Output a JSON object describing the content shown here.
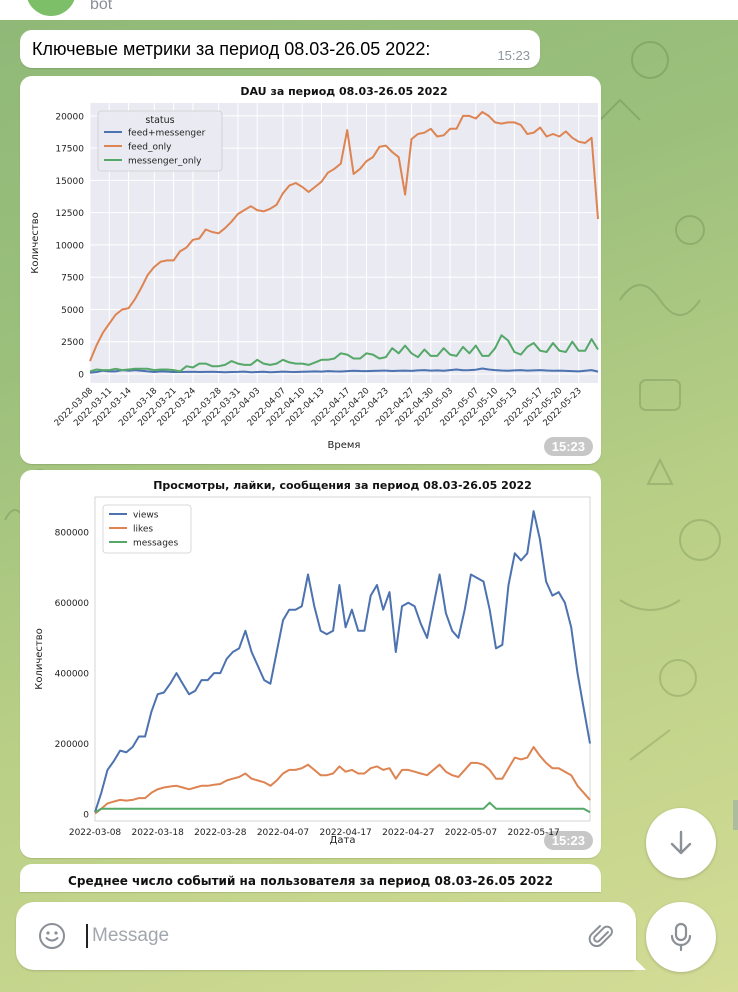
{
  "header": {
    "subtitle": "bot"
  },
  "message": {
    "text": "Ключевые метрики за период 08.03-26.05 2022:",
    "time": "15:23"
  },
  "chart_time": "15:23",
  "charts_footer": {
    "title": "Среднее число событий на пользователя за период 08.03-26.05 2022"
  },
  "composer": {
    "placeholder": "Message"
  },
  "icons": {
    "emoji": "smile-icon",
    "attach": "paperclip-icon",
    "mic": "microphone-icon",
    "scroll": "arrow-down-icon"
  },
  "chart_data": [
    {
      "type": "line",
      "title": "DAU за период 08.03-26.05 2022",
      "xlabel": "Время",
      "ylabel": "Количество",
      "legend_title": "status",
      "legend_placement": "top-left",
      "ylim": [
        -700,
        21000
      ],
      "yticks": [
        0,
        2500,
        5000,
        7500,
        10000,
        12500,
        15000,
        17500,
        20000
      ],
      "x_start": "2022-03-08",
      "x_count": 80,
      "x_tick_labels": [
        "2022-03-08",
        "2022-03-11",
        "2022-03-14",
        "2022-03-18",
        "2022-03-21",
        "2022-03-24",
        "2022-03-28",
        "2022-03-31",
        "2022-04-03",
        "2022-04-07",
        "2022-04-10",
        "2022-04-13",
        "2022-04-17",
        "2022-04-20",
        "2022-04-23",
        "2022-04-27",
        "2022-04-30",
        "2022-05-03",
        "2022-05-07",
        "2022-05-10",
        "2022-05-13",
        "2022-05-17",
        "2022-05-20",
        "2022-05-23"
      ],
      "x_tick_idx": [
        0,
        3,
        6,
        10,
        13,
        16,
        20,
        23,
        26,
        30,
        33,
        36,
        40,
        43,
        46,
        50,
        53,
        56,
        60,
        63,
        66,
        70,
        73,
        76
      ],
      "grid": true,
      "style": "seaborn-darkgrid",
      "series": [
        {
          "name": "feed+messenger",
          "color": "#4c72b0",
          "values": [
            100,
            150,
            250,
            200,
            200,
            300,
            250,
            300,
            250,
            200,
            150,
            200,
            180,
            150,
            150,
            160,
            170,
            150,
            160,
            170,
            150,
            130,
            150,
            160,
            180,
            140,
            150,
            170,
            130,
            150,
            180,
            160,
            150,
            170,
            180,
            200,
            180,
            220,
            200,
            190,
            220,
            250,
            230,
            220,
            240,
            250,
            260,
            230,
            250,
            260,
            240,
            280,
            300,
            260,
            280,
            250,
            300,
            350,
            290,
            300,
            330,
            420,
            350,
            300,
            270,
            250,
            280,
            300,
            260,
            280,
            300,
            270,
            250,
            260,
            240,
            220,
            200,
            250,
            300,
            180
          ]
        },
        {
          "name": "feed_only",
          "color": "#dd8452",
          "values": [
            1000,
            2200,
            3200,
            3900,
            4600,
            5000,
            5100,
            5800,
            6700,
            7700,
            8300,
            8700,
            8800,
            8800,
            9500,
            9800,
            10400,
            10500,
            11200,
            11000,
            10900,
            11300,
            11800,
            12400,
            12700,
            13000,
            12700,
            12600,
            12800,
            13100,
            14000,
            14600,
            14800,
            14500,
            14100,
            14500,
            14900,
            15600,
            15900,
            16300,
            18900,
            15500,
            15900,
            16500,
            16800,
            17600,
            17700,
            17200,
            16800,
            13900,
            18200,
            18600,
            18700,
            19000,
            18400,
            18500,
            19000,
            19000,
            20000,
            20000,
            19800,
            20300,
            20000,
            19500,
            19400,
            19500,
            19500,
            19300,
            18600,
            18700,
            19100,
            18400,
            18600,
            18400,
            18800,
            18300,
            18000,
            17900,
            18300,
            12000
          ]
        },
        {
          "name": "messenger_only",
          "color": "#55a868",
          "values": [
            200,
            350,
            300,
            300,
            400,
            300,
            350,
            400,
            400,
            400,
            300,
            350,
            350,
            300,
            200,
            600,
            500,
            800,
            800,
            600,
            600,
            700,
            1000,
            800,
            700,
            700,
            1100,
            800,
            700,
            800,
            1100,
            900,
            800,
            800,
            700,
            900,
            1100,
            1100,
            1200,
            1600,
            1500,
            1200,
            1200,
            1600,
            1500,
            1200,
            1300,
            2000,
            1600,
            2200,
            1600,
            1300,
            1900,
            1400,
            1400,
            2000,
            1500,
            1400,
            2100,
            1600,
            2200,
            1400,
            1400,
            2000,
            3000,
            2600,
            1700,
            1500,
            2100,
            2400,
            1800,
            1700,
            2400,
            1800,
            1700,
            2500,
            1800,
            1800,
            2700,
            1900
          ]
        }
      ]
    },
    {
      "type": "line",
      "title": "Просмотры, лайки, сообщения за период 08.03-26.05 2022",
      "xlabel": "Дата",
      "ylabel": "Количество",
      "legend_placement": "top-left",
      "ylim": [
        -20000,
        900000
      ],
      "yticks": [
        0,
        200000,
        400000,
        600000,
        800000
      ],
      "x_start": "2022-03-08",
      "x_count": 80,
      "x_tick_labels": [
        "2022-03-08",
        "2022-03-18",
        "2022-03-28",
        "2022-04-07",
        "2022-04-17",
        "2022-04-27",
        "2022-05-07",
        "2022-05-17"
      ],
      "x_tick_idx": [
        0,
        10,
        20,
        30,
        40,
        50,
        60,
        70
      ],
      "grid": false,
      "series": [
        {
          "name": "views",
          "color": "#4c72b0",
          "values": [
            5000,
            60000,
            125000,
            150000,
            180000,
            175000,
            190000,
            220000,
            220000,
            290000,
            340000,
            345000,
            370000,
            400000,
            370000,
            340000,
            350000,
            380000,
            380000,
            400000,
            400000,
            440000,
            460000,
            470000,
            520000,
            460000,
            420000,
            380000,
            370000,
            460000,
            550000,
            580000,
            580000,
            590000,
            680000,
            590000,
            520000,
            510000,
            520000,
            650000,
            530000,
            580000,
            520000,
            520000,
            620000,
            650000,
            580000,
            630000,
            460000,
            590000,
            600000,
            590000,
            540000,
            500000,
            590000,
            680000,
            570000,
            520000,
            500000,
            580000,
            680000,
            670000,
            660000,
            580000,
            470000,
            480000,
            650000,
            740000,
            720000,
            740000,
            860000,
            780000,
            660000,
            620000,
            630000,
            600000,
            530000,
            400000,
            300000,
            200000
          ]
        },
        {
          "name": "likes",
          "color": "#dd8452",
          "values": [
            1000,
            15000,
            30000,
            35000,
            40000,
            38000,
            40000,
            45000,
            45000,
            60000,
            70000,
            75000,
            78000,
            80000,
            75000,
            70000,
            75000,
            80000,
            80000,
            83000,
            85000,
            95000,
            100000,
            105000,
            115000,
            100000,
            95000,
            90000,
            80000,
            95000,
            115000,
            125000,
            125000,
            130000,
            140000,
            125000,
            110000,
            110000,
            115000,
            135000,
            120000,
            125000,
            115000,
            115000,
            130000,
            135000,
            125000,
            130000,
            100000,
            125000,
            125000,
            120000,
            115000,
            110000,
            125000,
            140000,
            120000,
            110000,
            105000,
            125000,
            145000,
            145000,
            140000,
            125000,
            100000,
            100000,
            130000,
            160000,
            155000,
            160000,
            190000,
            165000,
            145000,
            130000,
            130000,
            120000,
            110000,
            80000,
            60000,
            40000
          ]
        },
        {
          "name": "messages",
          "color": "#55a868",
          "values": [
            5000,
            15000,
            15000,
            15000,
            15000,
            15000,
            15000,
            15000,
            15000,
            15000,
            15000,
            15000,
            15000,
            15000,
            15000,
            15000,
            15000,
            15000,
            15000,
            15000,
            15000,
            15000,
            15000,
            15000,
            15000,
            15000,
            15000,
            15000,
            15000,
            15000,
            15000,
            15000,
            15000,
            15000,
            15000,
            15000,
            15000,
            15000,
            15000,
            15000,
            15000,
            15000,
            15000,
            15000,
            15000,
            15000,
            15000,
            15000,
            15000,
            15000,
            15000,
            15000,
            15000,
            15000,
            15000,
            15000,
            15000,
            15000,
            15000,
            15000,
            15000,
            15000,
            15000,
            32000,
            15000,
            15000,
            15000,
            15000,
            15000,
            15000,
            15000,
            15000,
            15000,
            15000,
            15000,
            15000,
            15000,
            15000,
            15000,
            5000
          ]
        }
      ]
    }
  ]
}
